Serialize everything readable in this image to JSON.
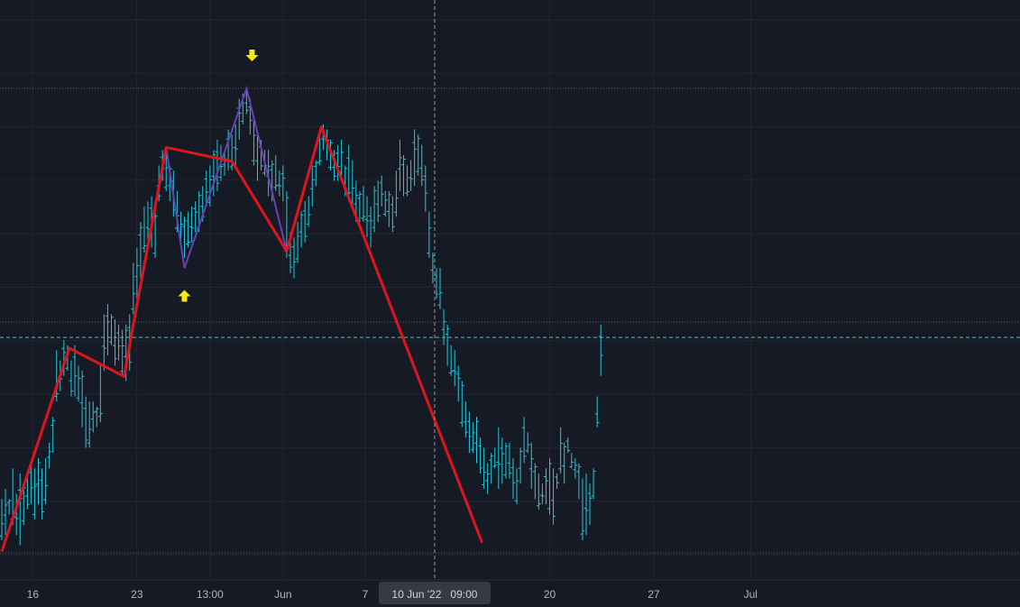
{
  "colors": {
    "background": "#161a25",
    "grid": "#232632",
    "bars": "#26c6da",
    "zigzag": "#e0141c",
    "pattern": "#6a3fb5",
    "arrow": "#f5e90e",
    "crosshair": "#9598a1",
    "dotted_level": "#5d606b",
    "axis_text": "#b2b5be",
    "axis_pill": "#363a45"
  },
  "crosshair": {
    "x_label": "10 Jun '22   09:00",
    "x_index": 118.5,
    "y_value": 42.5
  },
  "chart_data": {
    "type": "ohlc-bars",
    "x_tick_labels": [
      {
        "text": "16",
        "i": 8.5
      },
      {
        "text": "23",
        "i": 37
      },
      {
        "text": "13:00",
        "i": 57
      },
      {
        "text": "Jun",
        "i": 77
      },
      {
        "text": "7",
        "i": 99.5
      },
      {
        "text": "20",
        "i": 150
      },
      {
        "text": "27",
        "i": 178.5
      },
      {
        "text": "Jul",
        "i": 205
      }
    ],
    "y_range": [
      0,
      100
    ],
    "x_range": [
      0,
      222
    ],
    "horizontal_levels": [
      91,
      45.5,
      42.5,
      0.5
    ],
    "bars": [
      [
        0,
        3,
        11
      ],
      [
        1,
        4,
        13
      ],
      [
        2,
        8,
        11
      ],
      [
        3,
        6,
        17
      ],
      [
        4,
        4,
        12
      ],
      [
        5,
        2,
        16
      ],
      [
        6,
        6,
        14
      ],
      [
        7,
        9,
        15
      ],
      [
        8,
        10,
        18
      ],
      [
        9,
        7,
        17
      ],
      [
        10,
        10,
        19
      ],
      [
        11,
        7,
        17
      ],
      [
        12,
        10,
        19
      ],
      [
        13,
        17,
        22
      ],
      [
        14,
        20,
        27
      ],
      [
        15,
        30,
        40
      ],
      [
        16,
        32,
        38
      ],
      [
        17,
        35,
        42
      ],
      [
        18,
        36,
        41
      ],
      [
        19,
        31,
        38
      ],
      [
        20,
        31,
        41
      ],
      [
        21,
        30,
        37
      ],
      [
        22,
        25,
        36
      ],
      [
        23,
        21,
        31
      ],
      [
        24,
        21,
        30
      ],
      [
        25,
        24,
        30
      ],
      [
        26,
        25,
        29
      ],
      [
        27,
        26,
        37
      ],
      [
        28,
        36,
        47
      ],
      [
        29,
        39,
        49
      ],
      [
        30,
        41,
        47
      ],
      [
        31,
        37,
        46
      ],
      [
        32,
        38,
        45
      ],
      [
        33,
        35,
        44
      ],
      [
        34,
        34,
        45
      ],
      [
        35,
        36,
        47
      ],
      [
        36,
        47,
        57
      ],
      [
        37,
        50,
        60
      ],
      [
        38,
        54,
        65
      ],
      [
        39,
        59,
        68
      ],
      [
        40,
        60,
        69
      ],
      [
        41,
        60,
        70
      ],
      [
        42,
        58,
        67
      ],
      [
        43,
        69,
        76
      ],
      [
        44,
        73,
        79
      ],
      [
        45,
        71,
        78
      ],
      [
        46,
        69,
        76
      ],
      [
        47,
        66,
        75
      ],
      [
        48,
        63,
        71
      ],
      [
        49,
        60,
        67
      ],
      [
        50,
        58,
        66
      ],
      [
        51,
        60,
        67
      ],
      [
        52,
        61,
        68
      ],
      [
        53,
        63,
        69
      ],
      [
        54,
        63,
        71
      ],
      [
        55,
        65,
        72
      ],
      [
        56,
        68,
        75
      ],
      [
        57,
        68,
        76
      ],
      [
        58,
        70,
        79
      ],
      [
        59,
        71,
        81
      ],
      [
        60,
        73,
        80
      ],
      [
        61,
        74,
        79
      ],
      [
        62,
        75,
        83
      ],
      [
        63,
        75,
        82
      ],
      [
        64,
        76,
        84
      ],
      [
        65,
        81,
        89
      ],
      [
        66,
        84,
        90
      ],
      [
        67,
        86,
        91
      ],
      [
        68,
        82,
        89
      ],
      [
        69,
        76,
        85
      ],
      [
        70,
        73,
        82
      ],
      [
        71,
        75,
        81
      ],
      [
        72,
        74,
        79
      ],
      [
        73,
        70,
        79
      ],
      [
        74,
        69,
        77
      ],
      [
        75,
        71,
        78
      ],
      [
        76,
        70,
        75
      ],
      [
        77,
        69,
        76
      ],
      [
        78,
        58,
        71
      ],
      [
        79,
        55,
        63
      ],
      [
        80,
        54,
        62
      ],
      [
        81,
        57,
        65
      ],
      [
        82,
        60,
        67
      ],
      [
        83,
        61,
        69
      ],
      [
        84,
        64,
        70
      ],
      [
        85,
        68,
        76
      ],
      [
        86,
        72,
        77
      ],
      [
        87,
        76,
        82
      ],
      [
        88,
        79,
        84
      ],
      [
        89,
        77,
        83
      ],
      [
        90,
        75,
        81
      ],
      [
        91,
        73,
        79
      ],
      [
        92,
        73,
        80
      ],
      [
        93,
        74,
        81
      ],
      [
        94,
        70,
        76
      ],
      [
        95,
        69,
        80
      ],
      [
        96,
        68,
        77
      ],
      [
        97,
        65,
        73
      ],
      [
        98,
        65,
        71
      ],
      [
        99,
        65,
        72
      ],
      [
        100,
        62,
        70
      ],
      [
        101,
        60,
        68
      ],
      [
        102,
        63,
        72
      ],
      [
        103,
        65,
        73
      ],
      [
        104,
        68,
        74
      ],
      [
        105,
        66,
        71
      ],
      [
        106,
        64,
        71
      ],
      [
        107,
        63,
        70
      ],
      [
        108,
        66,
        75
      ],
      [
        109,
        71,
        81
      ],
      [
        110,
        70,
        78
      ],
      [
        111,
        70,
        76
      ],
      [
        112,
        71,
        77
      ],
      [
        113,
        72,
        83
      ],
      [
        114,
        74,
        82
      ],
      [
        115,
        72,
        80
      ],
      [
        116,
        67,
        76
      ],
      [
        117,
        58,
        67
      ],
      [
        118,
        53,
        59
      ],
      [
        119,
        50,
        56
      ],
      [
        120,
        48,
        56
      ],
      [
        121,
        41,
        48
      ],
      [
        122,
        37,
        45
      ],
      [
        123,
        35,
        41
      ],
      [
        124,
        33,
        40
      ],
      [
        125,
        30,
        37
      ],
      [
        126,
        25,
        34
      ],
      [
        127,
        23,
        30
      ],
      [
        128,
        20,
        28
      ],
      [
        129,
        20,
        26
      ],
      [
        130,
        18,
        27
      ],
      [
        131,
        16,
        23
      ],
      [
        132,
        13,
        21
      ],
      [
        133,
        12,
        18
      ],
      [
        134,
        14,
        20
      ],
      [
        135,
        17,
        21
      ],
      [
        136,
        13,
        25
      ],
      [
        137,
        14,
        23
      ],
      [
        138,
        15,
        22
      ],
      [
        139,
        15,
        22
      ],
      [
        140,
        11,
        19
      ],
      [
        141,
        10,
        17
      ],
      [
        142,
        14,
        21
      ],
      [
        143,
        18,
        27
      ],
      [
        144,
        20,
        24
      ],
      [
        145,
        13,
        22
      ],
      [
        146,
        11,
        18
      ],
      [
        147,
        9,
        16
      ],
      [
        148,
        10,
        14
      ],
      [
        149,
        10,
        17
      ],
      [
        150,
        8,
        19
      ],
      [
        151,
        6,
        17
      ],
      [
        152,
        13,
        16
      ],
      [
        153,
        16,
        25
      ],
      [
        154,
        14,
        22
      ],
      [
        155,
        20,
        23
      ],
      [
        156,
        17,
        20
      ],
      [
        157,
        15,
        19
      ],
      [
        158,
        11,
        18
      ],
      [
        159,
        3,
        15
      ],
      [
        160,
        4,
        16
      ],
      [
        161,
        6,
        14
      ],
      [
        162,
        11,
        17
      ],
      [
        163,
        25,
        31
      ],
      [
        164,
        35,
        45
      ]
    ],
    "zigzag": [
      [
        0,
        0.8
      ],
      [
        18.5,
        40.4
      ],
      [
        33.5,
        34.9
      ],
      [
        36,
        45
      ],
      [
        45,
        79.5
      ],
      [
        63,
        76.8
      ],
      [
        78,
        59.3
      ],
      [
        87.5,
        83.5
      ],
      [
        131.5,
        2.5
      ]
    ],
    "pattern_line": [
      [
        45,
        79.5
      ],
      [
        50,
        56
      ],
      [
        67,
        91
      ],
      [
        78,
        59.3
      ]
    ],
    "markers": [
      {
        "type": "up-arrow",
        "i": 50,
        "y": 50.5
      },
      {
        "type": "down-arrow",
        "i": 68.5,
        "y": 97.5
      }
    ]
  }
}
